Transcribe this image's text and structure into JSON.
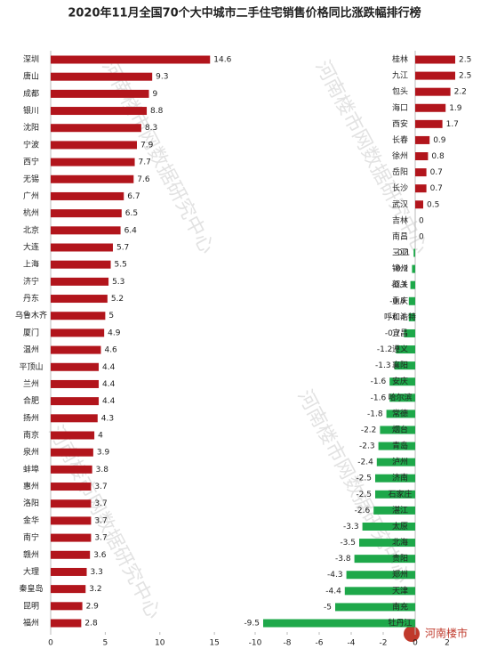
{
  "title": "2020年11月全国70个大中城市二手住宅销售价格同比涨跌幅排行榜",
  "watermark": "河南楼市网数据研究中心",
  "logo": "河南楼市",
  "chart_data": [
    {
      "type": "bar",
      "orientation": "horizontal",
      "color": "#b2151c",
      "categories": [
        "深圳",
        "唐山",
        "成都",
        "银川",
        "沈阳",
        "宁波",
        "西宁",
        "无锡",
        "广州",
        "杭州",
        "北京",
        "大连",
        "上海",
        "济宁",
        "丹东",
        "乌鲁木齐",
        "厦门",
        "温州",
        "平顶山",
        "兰州",
        "合肥",
        "扬州",
        "南京",
        "泉州",
        "蚌埠",
        "惠州",
        "洛阳",
        "金华",
        "南宁",
        "赣州",
        "大理",
        "秦皇岛",
        "昆明",
        "福州"
      ],
      "values": [
        14.6,
        9.3,
        9,
        8.8,
        8.3,
        7.9,
        7.7,
        7.6,
        6.7,
        6.5,
        6.4,
        5.7,
        5.5,
        5.3,
        5.2,
        5,
        4.9,
        4.6,
        4.4,
        4.4,
        4.4,
        4.3,
        4,
        3.9,
        3.8,
        3.7,
        3.7,
        3.7,
        3.7,
        3.6,
        3.3,
        3.2,
        2.9,
        2.8
      ],
      "xlim": [
        0,
        18
      ],
      "xticks": [
        0,
        5,
        10,
        15
      ]
    },
    {
      "type": "bar",
      "orientation": "horizontal",
      "color": "#b2151c",
      "negative_color": "#1ea84a",
      "categories": [
        "桂林",
        "九江",
        "包头",
        "海口",
        "西安",
        "长春",
        "徐州",
        "岳阳",
        "长沙",
        "武汉",
        "吉林",
        "南昌",
        "三亚",
        "锦州",
        "韶关",
        "重庆",
        "呼和浩特",
        "宜昌",
        "遵义",
        "襄阳",
        "安庆",
        "哈尔滨",
        "常德",
        "烟台",
        "青岛",
        "泸州",
        "济南",
        "石家庄",
        "湛江",
        "太原",
        "北海",
        "贵阳",
        "郑州",
        "天津",
        "南充",
        "牡丹江"
      ],
      "values": [
        2.5,
        2.5,
        2.2,
        1.9,
        1.7,
        0.9,
        0.8,
        0.7,
        0.7,
        0.5,
        0,
        0,
        -0.1,
        -0.2,
        -0.3,
        -0.4,
        -0.4,
        -0.7,
        -1.2,
        -1.3,
        -1.6,
        -1.6,
        -1.8,
        -2.2,
        -2.3,
        -2.4,
        -2.5,
        -2.5,
        -2.6,
        -3.3,
        -3.5,
        -3.8,
        -4.3,
        -4.4,
        -5,
        -9.5
      ],
      "xlim": [
        -10,
        4
      ],
      "xticks": [
        -10,
        -8,
        -6,
        -4,
        -2,
        0,
        2
      ]
    }
  ]
}
